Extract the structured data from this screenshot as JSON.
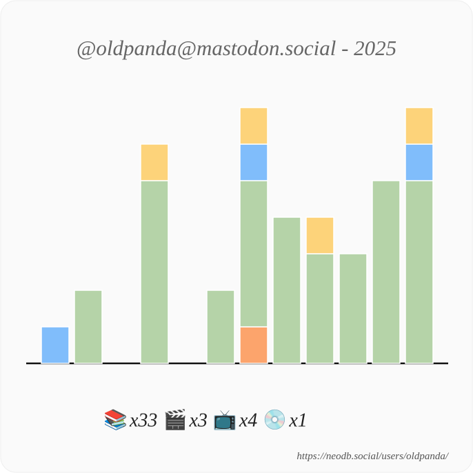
{
  "chart_data": {
    "type": "stacked-bar",
    "title": "@oldpanda@mastodon.social - 2025",
    "footer": "https://neodb.social/users/oldpanda/",
    "ylim": [
      0,
      7
    ],
    "series": [
      {
        "name": "💿",
        "total_label": "x1",
        "color": "#fca46c",
        "values": [
          0,
          0,
          0,
          0,
          0,
          0,
          1,
          0,
          0,
          0,
          0,
          0
        ]
      },
      {
        "name": "📚",
        "total_label": "x33",
        "color": "#b5d3a8",
        "values": [
          0,
          2,
          0,
          5,
          0,
          2,
          4,
          4,
          3,
          3,
          5,
          5
        ]
      },
      {
        "name": "🎬",
        "total_label": "x3",
        "color": "#80bdfb",
        "values": [
          1,
          0,
          0,
          0,
          0,
          0,
          1,
          0,
          0,
          0,
          0,
          1
        ]
      },
      {
        "name": "📺",
        "total_label": "x4",
        "color": "#fdd37a",
        "values": [
          0,
          0,
          0,
          1,
          0,
          0,
          1,
          0,
          1,
          0,
          0,
          1
        ]
      }
    ],
    "legend_order": [
      1,
      2,
      3,
      0
    ]
  }
}
